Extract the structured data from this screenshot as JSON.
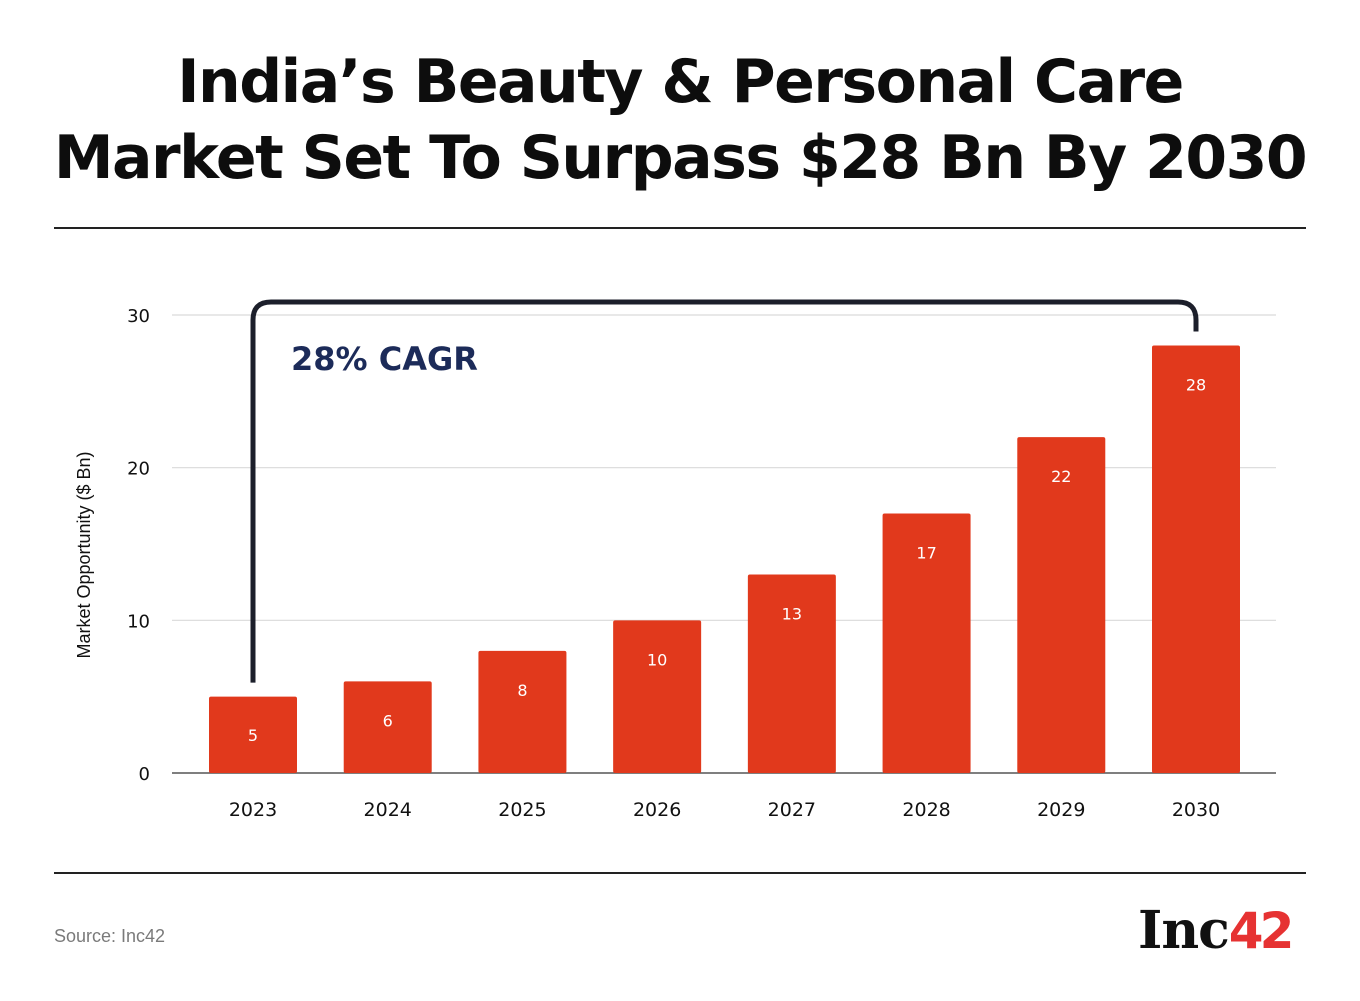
{
  "header": {
    "title_line1": "India’s Beauty & Personal Care",
    "title_line2": "Market Set To Surpass $28 Bn By 2030"
  },
  "footer": {
    "source": "Source: Inc42",
    "logo_text": "Inc",
    "logo_number": "42"
  },
  "colors": {
    "bar": "#e1391c",
    "bracket": "#1c1f2b",
    "annotation": "#1c2b59",
    "grid": "#d9d9d9",
    "logo_accent": "#e63232"
  },
  "chart_data": {
    "type": "bar",
    "title": "India’s Beauty & Personal Care Market Set To Surpass $28 Bn By 2030",
    "xlabel": "",
    "ylabel": "Market Opportunity ($ Bn)",
    "categories": [
      "2023",
      "2024",
      "2025",
      "2026",
      "2027",
      "2028",
      "2029",
      "2030"
    ],
    "values": [
      5,
      6,
      8,
      10,
      13,
      17,
      22,
      28
    ],
    "data_labels": [
      "5",
      "6",
      "8",
      "10",
      "13",
      "17",
      "22",
      "28"
    ],
    "ylim": [
      0,
      30
    ],
    "yticks": [
      0,
      10,
      20,
      30
    ],
    "grid": true,
    "legend": "none",
    "annotation": {
      "text": "28% CAGR",
      "from_category": "2023",
      "to_category": "2030"
    }
  }
}
